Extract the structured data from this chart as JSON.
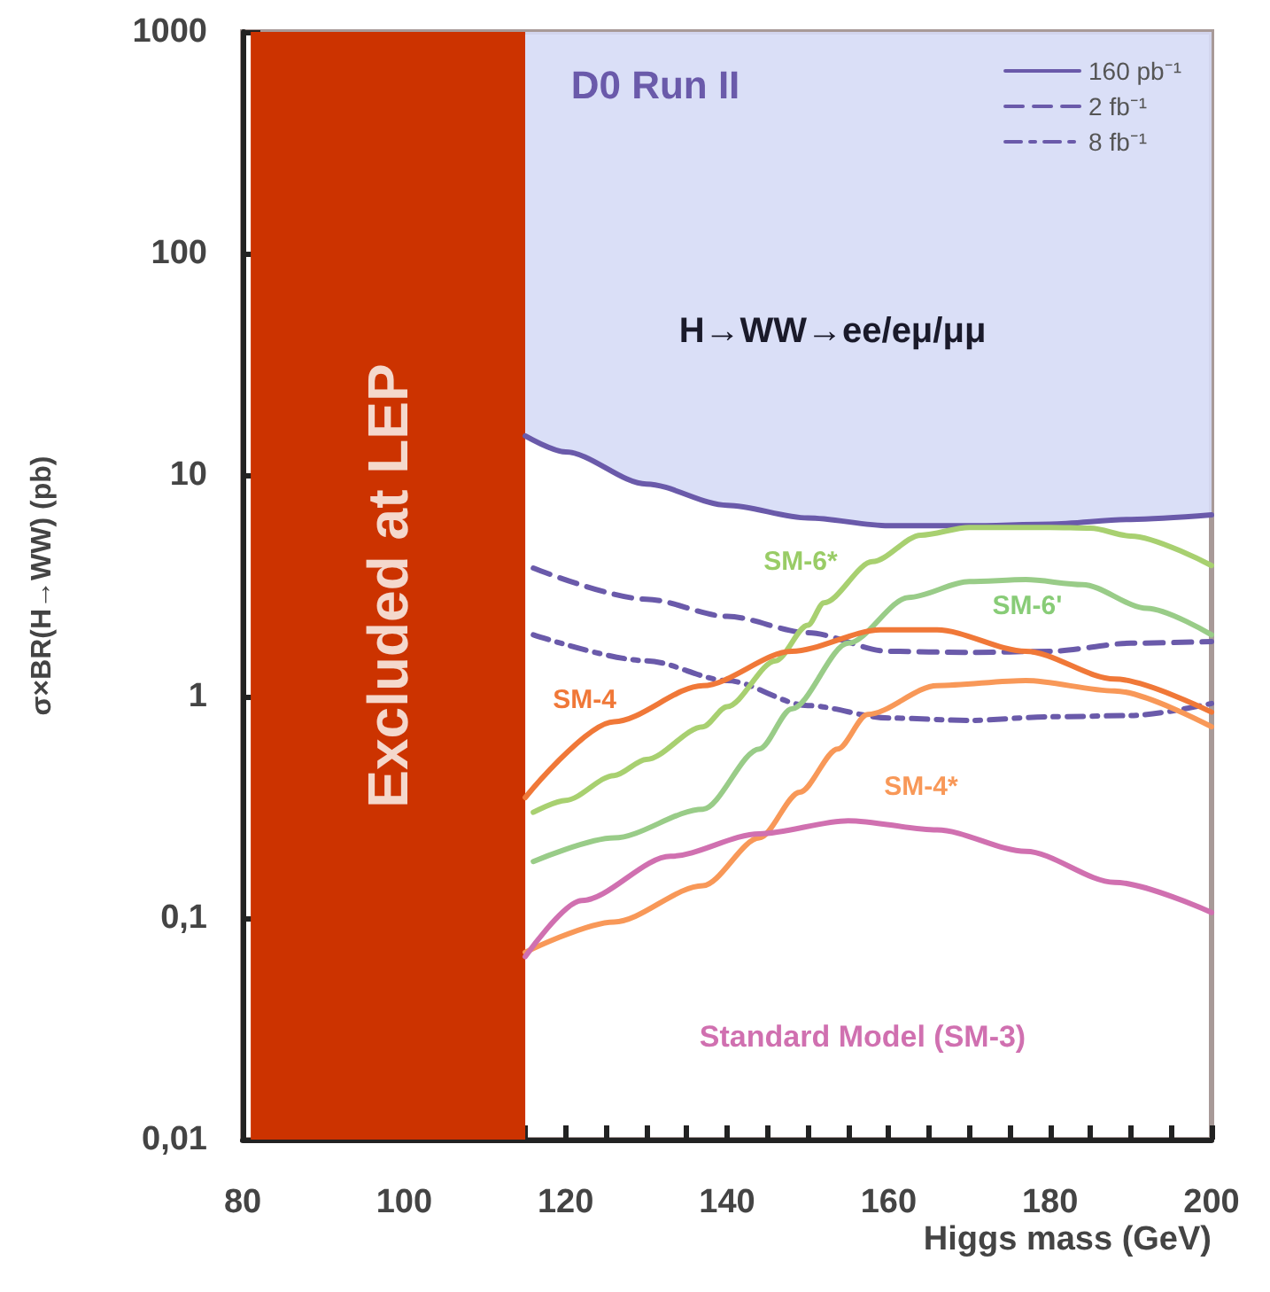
{
  "chart_data": {
    "type": "line",
    "xlabel": "Higgs mass (GeV)",
    "ylabel": "σ×BR(H→WW) (pb)",
    "xlim": [
      80,
      200
    ],
    "xticks": [
      80,
      100,
      120,
      140,
      160,
      180,
      200
    ],
    "ylim": [
      0.01,
      1000
    ],
    "yticks": [
      {
        "value": 0.01,
        "label": "0,01"
      },
      {
        "value": 0.1,
        "label": "0,1"
      },
      1,
      10,
      100,
      1000
    ],
    "log": "y",
    "legend": "top right",
    "marker": "none",
    "series": [
      {
        "name": "160 pb⁻¹",
        "color": "#6a5aaa",
        "line_style": "solid",
        "x": [
          115,
          120,
          130,
          140,
          150,
          160,
          170,
          180,
          190,
          200
        ],
        "values": [
          15,
          12.7,
          9.1,
          7.3,
          6.4,
          5.9,
          5.9,
          6.0,
          6.3,
          6.6
        ],
        "lower": [
          15,
          12.7,
          9.1,
          7.3,
          6.4,
          5.9,
          5.9,
          6.0,
          6.3,
          6.6
        ],
        "upper": [
          1000,
          1000,
          1000,
          1000,
          1000,
          1000,
          1000,
          1000,
          1000,
          1000
        ]
      },
      {
        "name": "2 fb⁻¹",
        "color": "#6a5aaa",
        "line_style": "dashed",
        "x": [
          116,
          130,
          140,
          150,
          160,
          170,
          180,
          190,
          200
        ],
        "values": [
          3.8,
          2.75,
          2.3,
          1.94,
          1.6,
          1.58,
          1.6,
          1.74,
          1.77
        ]
      },
      {
        "name": "8 fb⁻¹",
        "color": "#6a5aaa",
        "line_style": "dotted",
        "x": [
          116,
          130,
          140,
          150,
          160,
          170,
          180,
          190,
          200
        ],
        "values": [
          1.9,
          1.45,
          1.18,
          0.91,
          0.8,
          0.78,
          0.81,
          0.82,
          0.93
        ]
      },
      {
        "color": "#a8d070",
        "x": [
          116,
          120,
          126,
          130,
          137,
          140,
          146,
          150,
          152,
          158,
          164,
          170,
          180,
          185,
          190,
          200
        ],
        "values": [
          0.3,
          0.34,
          0.44,
          0.52,
          0.73,
          0.9,
          1.45,
          2.1,
          2.65,
          4.06,
          5.35,
          5.8,
          5.8,
          5.75,
          5.3,
          3.9
        ]
      },
      {
        "color": "#99cc88",
        "x": [
          116,
          126,
          137,
          144,
          148,
          155,
          162.5,
          170,
          177,
          184,
          192,
          200
        ],
        "values": [
          0.18,
          0.23,
          0.31,
          0.58,
          0.88,
          1.74,
          2.8,
          3.3,
          3.37,
          3.2,
          2.5,
          1.9
        ]
      },
      {
        "color": "#f07838",
        "x": [
          115,
          126,
          137,
          148,
          159,
          166,
          177,
          188,
          200
        ],
        "values": [
          0.35,
          0.77,
          1.12,
          1.6,
          2.0,
          2.0,
          1.6,
          1.2,
          0.85
        ]
      },
      {
        "color": "#f89858",
        "x": [
          115,
          126,
          137,
          144,
          149,
          153.7,
          157.4,
          166,
          177,
          188,
          200
        ],
        "values": [
          0.07,
          0.096,
          0.14,
          0.23,
          0.37,
          0.58,
          0.83,
          1.12,
          1.18,
          1.06,
          0.73
        ]
      },
      {
        "color": "#d070b0",
        "x": [
          115,
          122,
          133,
          144,
          155,
          166,
          177,
          188,
          200
        ],
        "values": [
          0.067,
          0.12,
          0.19,
          0.24,
          0.275,
          0.25,
          0.2,
          0.145,
          0.106
        ]
      }
    ],
    "bands": [
      {
        "axis": "x",
        "from": 81,
        "to": 115,
        "label": "Excluded at LEP",
        "color": "#cc3300"
      }
    ],
    "annotations": [
      "D0 Run II",
      "H→WW→ee/eμ/μμ",
      "SM-6*",
      "SM-6'",
      "SM-4",
      "SM-4*",
      "Standard Model (SM-3)"
    ]
  }
}
